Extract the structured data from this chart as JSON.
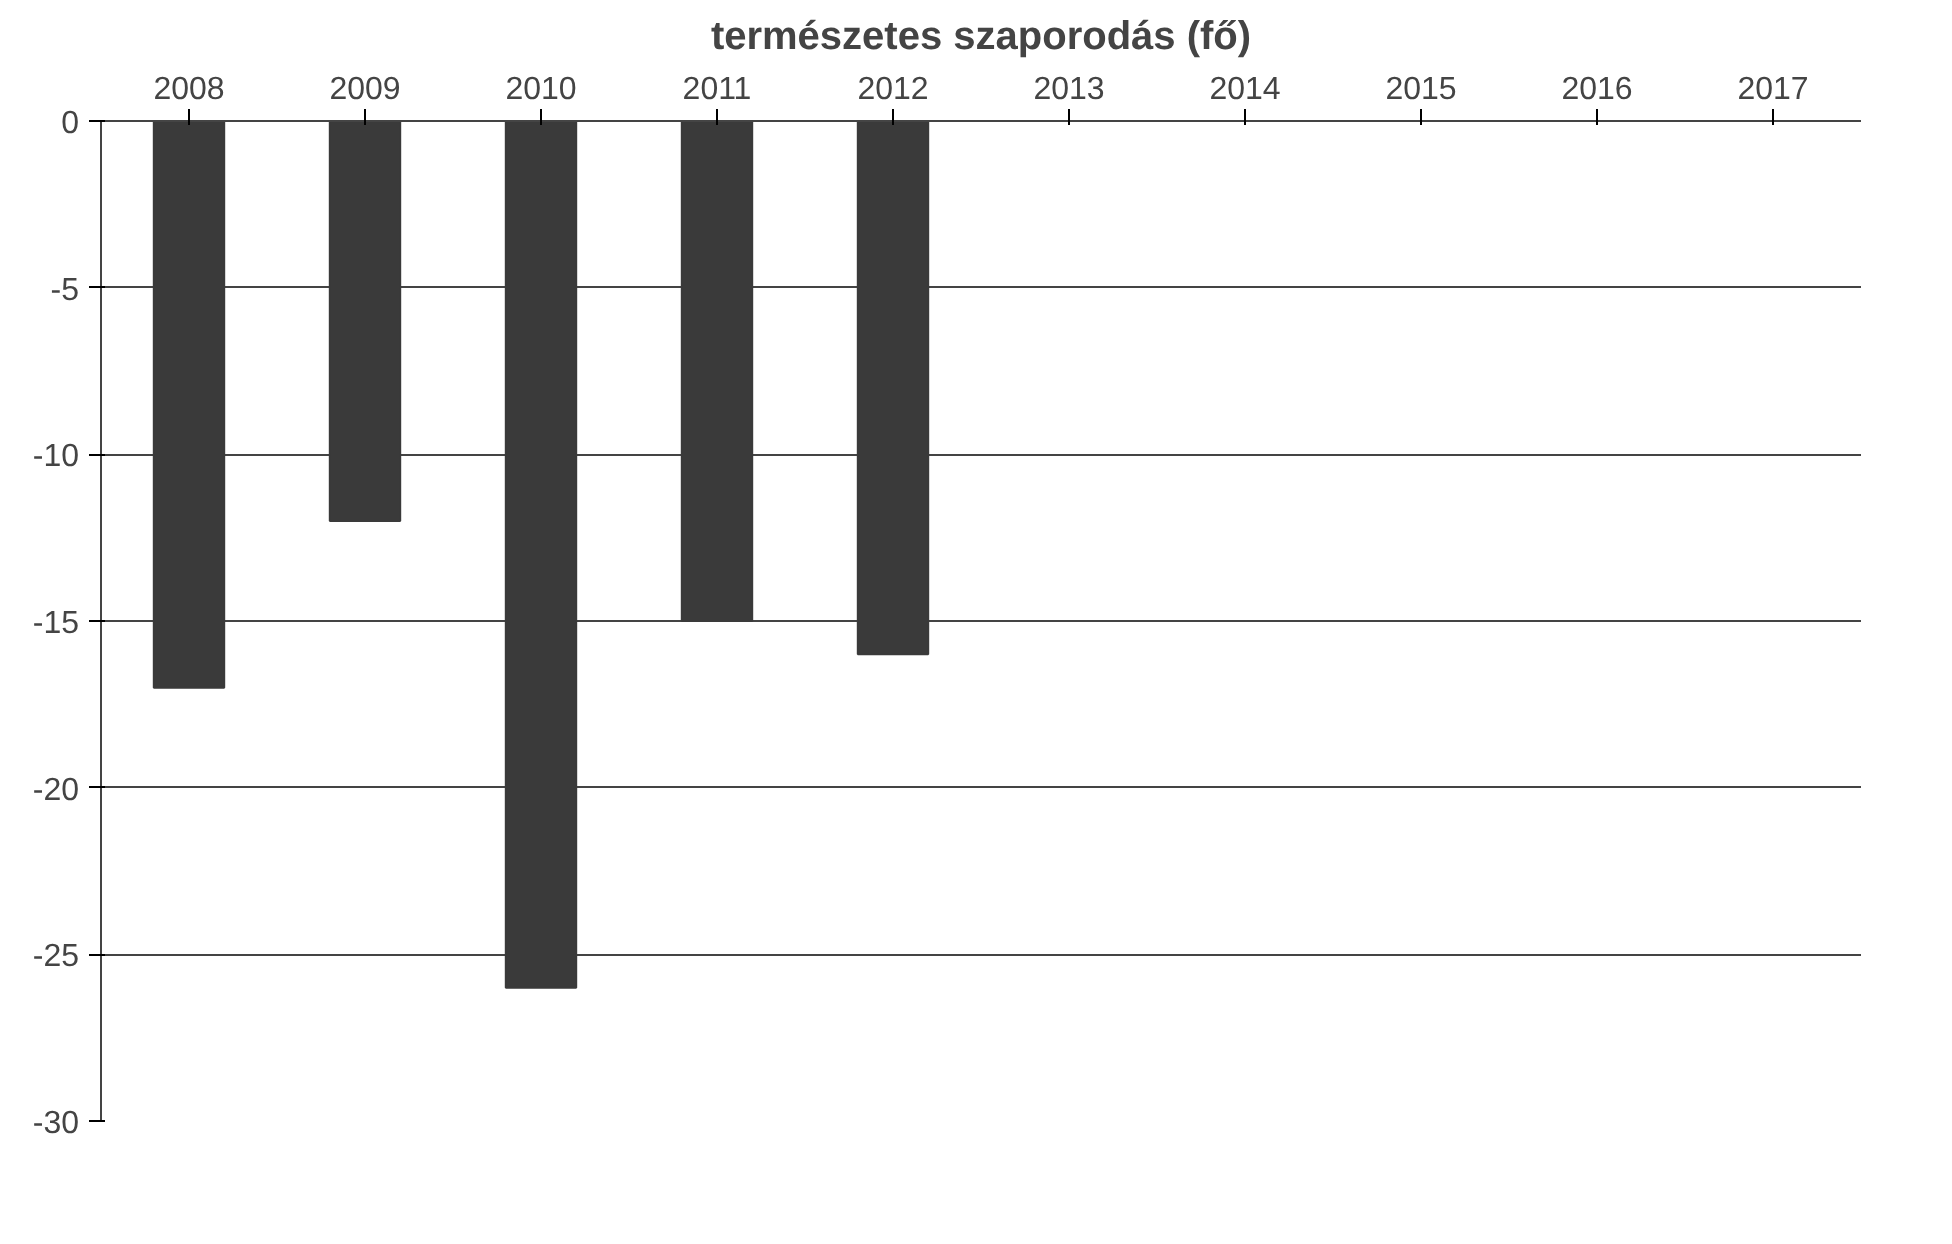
{
  "chart_data": {
    "type": "bar",
    "title": "természetes szaporodás (fő)",
    "categories": [
      "2008",
      "2009",
      "2010",
      "2011",
      "2012",
      "2013",
      "2014",
      "2015",
      "2016",
      "2017"
    ],
    "values": [
      -17,
      -12,
      -26,
      -15,
      -16,
      null,
      null,
      null,
      null,
      null
    ],
    "color": "#3a3a3a",
    "ylim": [
      -30,
      0
    ],
    "yticks": [
      0,
      -5,
      -10,
      -15,
      -20,
      -25,
      -30
    ],
    "grid": "y"
  }
}
